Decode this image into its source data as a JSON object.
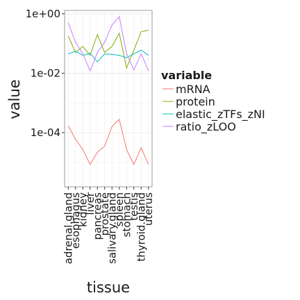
{
  "chart_data": {
    "type": "line",
    "title": "",
    "xlabel": "tissue",
    "ylabel": "value",
    "y_scale": "log10",
    "ylim": [
      1.5e-06,
      1.3
    ],
    "y_ticks": [
      {
        "value": 1,
        "label": "1e+00"
      },
      {
        "value": 0.01,
        "label": "1e-02"
      },
      {
        "value": 0.0001,
        "label": "1e-04"
      }
    ],
    "categories": [
      "adrenal.gland",
      "esophagus",
      "kidney",
      "liver",
      "pancreas",
      "prostate",
      "salivary.gland",
      "spleen",
      "stomach",
      "testis",
      "thyroid.gland",
      "uterus"
    ],
    "series": [
      {
        "name": "mRNA",
        "color": "#F8766D",
        "values": [
          0.00017,
          6e-05,
          2.7e-05,
          8.5e-06,
          2.2e-05,
          3.5e-05,
          0.00016,
          0.00028,
          2.7e-05,
          8.5e-06,
          3.1e-05,
          8.5e-06
        ]
      },
      {
        "name": "protein",
        "color": "#7CAE00",
        "values": [
          0.18,
          0.05,
          0.08,
          0.04,
          0.2,
          0.05,
          0.08,
          0.22,
          0.015,
          0.06,
          0.25,
          0.28
        ]
      },
      {
        "name": "elastic_zTFs_zNI",
        "color": "#00BFC4",
        "values": [
          0.045,
          0.055,
          0.04,
          0.047,
          0.024,
          0.045,
          0.043,
          0.04,
          0.033,
          0.045,
          0.06,
          0.04
        ]
      },
      {
        "name": "ratio_zLOO",
        "color": "#C77CFF",
        "values": [
          0.5,
          0.11,
          0.045,
          0.012,
          0.05,
          0.11,
          0.42,
          0.8,
          0.045,
          0.013,
          0.045,
          0.012
        ]
      }
    ],
    "legend": {
      "title": "variable",
      "position": "right"
    },
    "grid": true
  }
}
